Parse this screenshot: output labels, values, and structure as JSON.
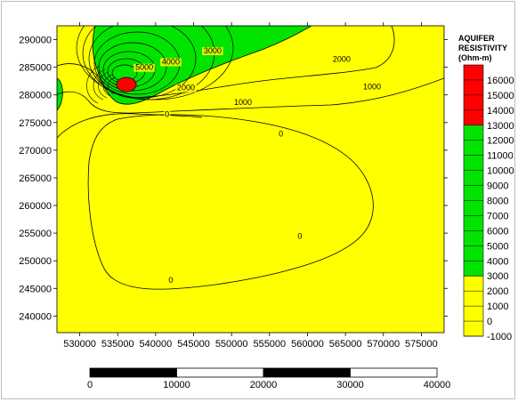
{
  "chart_data": {
    "type": "contour",
    "x_ticks": [
      "530000",
      "535000",
      "540000",
      "545000",
      "550000",
      "555000",
      "560000",
      "565000",
      "570000",
      "575000"
    ],
    "y_ticks": [
      "240000",
      "245000",
      "250000",
      "255000",
      "260000",
      "265000",
      "270000",
      "275000",
      "280000",
      "285000",
      "290000"
    ],
    "xlim": [
      527000,
      578000
    ],
    "ylim": [
      237000,
      292500
    ],
    "contour_labels": [
      {
        "text": "5000",
        "x": 538500,
        "y": 284500
      },
      {
        "text": "4000",
        "x": 542000,
        "y": 285500
      },
      {
        "text": "3000",
        "x": 547500,
        "y": 287500
      },
      {
        "text": "2000",
        "x": 564500,
        "y": 286000
      },
      {
        "text": "2000",
        "x": 544000,
        "y": 280800
      },
      {
        "text": "1000",
        "x": 551500,
        "y": 278200
      },
      {
        "text": "1000",
        "x": 568500,
        "y": 281000
      },
      {
        "text": "0",
        "x": 541500,
        "y": 276000
      },
      {
        "text": "0",
        "x": 556500,
        "y": 272500
      },
      {
        "text": "0",
        "x": 559000,
        "y": 254000
      },
      {
        "text": "0",
        "x": 542000,
        "y": 246000
      }
    ],
    "colorbar": {
      "title": [
        "AQUIFER",
        "RESISTIVITY",
        "(Ohm-m)"
      ],
      "levels": [
        "16000",
        "15000",
        "14000",
        "13000",
        "12000",
        "11000",
        "10000",
        "9000",
        "8000",
        "7000",
        "6000",
        "5000",
        "4000",
        "3000",
        "2000",
        "1000",
        "0",
        "-1000"
      ],
      "bands": [
        {
          "from": 13000,
          "to": 17000,
          "color": "#ff0000"
        },
        {
          "from": 3000,
          "to": 13000,
          "color": "#00e400"
        },
        {
          "from": -1000,
          "to": 3000,
          "color": "#ffff00"
        }
      ]
    },
    "scale_bar": {
      "labels": [
        "0",
        "10000",
        "20000",
        "30000",
        "40000"
      ]
    }
  }
}
